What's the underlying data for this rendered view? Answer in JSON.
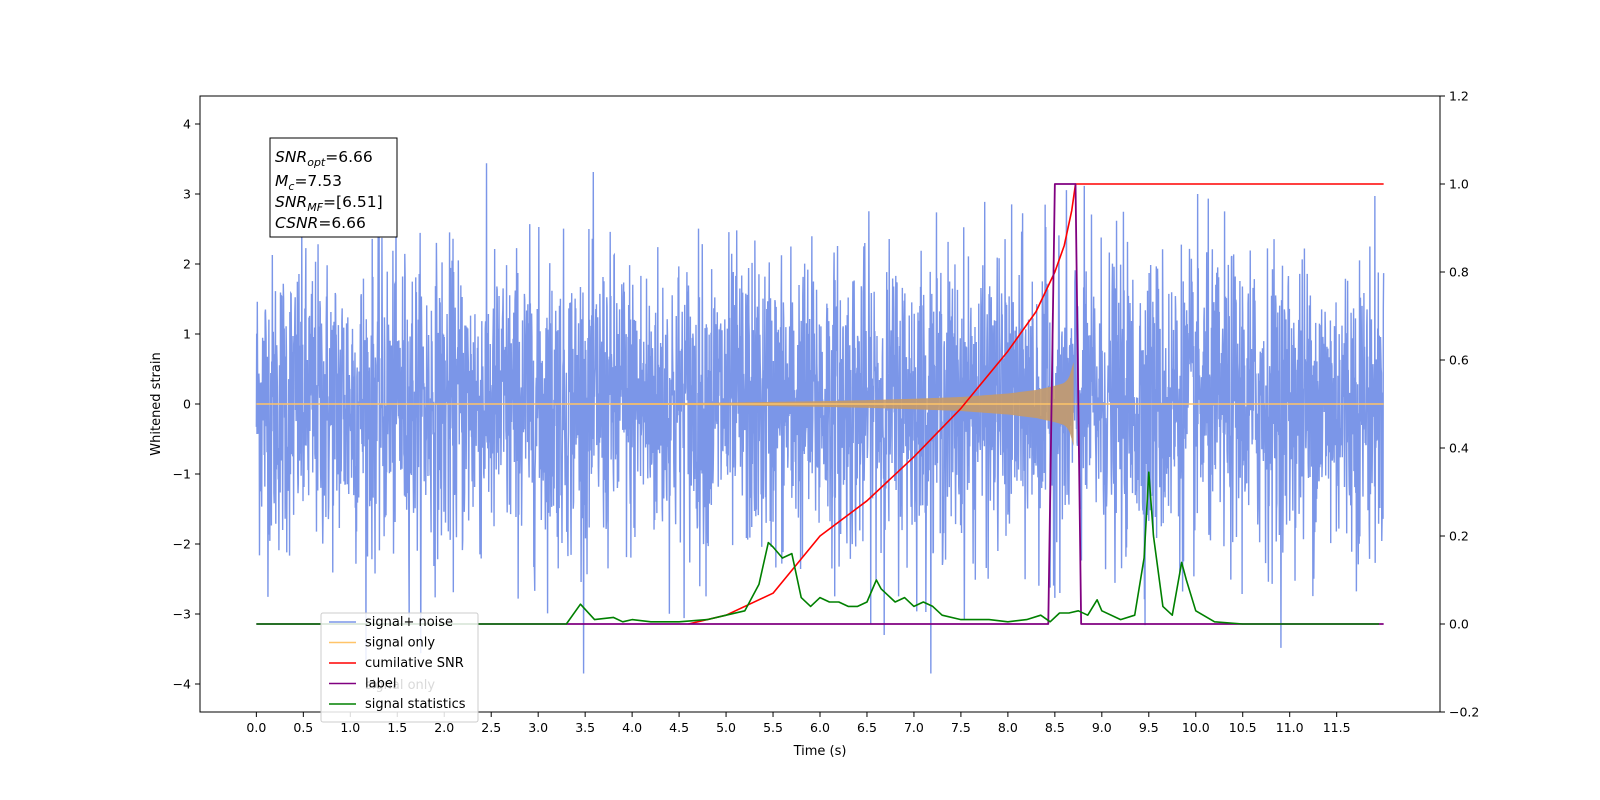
{
  "chart_data": {
    "type": "line",
    "xlabel": "Time (s)",
    "ylabel": "Whitened strain",
    "xlim": [
      -0.6,
      12.6
    ],
    "ylim": [
      -4.4,
      4.4
    ],
    "y2lim": [
      -0.2,
      1.2
    ],
    "x_ticks": [
      0.0,
      0.5,
      1.0,
      1.5,
      2.0,
      2.5,
      3.0,
      3.5,
      4.0,
      4.5,
      5.0,
      5.5,
      6.0,
      6.5,
      7.0,
      7.5,
      8.0,
      8.5,
      9.0,
      9.5,
      10.0,
      10.5,
      11.0,
      11.5
    ],
    "x_tick_labels": [
      "0.0",
      "0.5",
      "1.0",
      "1.5",
      "2.0",
      "2.5",
      "3.0",
      "3.5",
      "4.0",
      "4.5",
      "5.0",
      "5.5",
      "6.0",
      "6.5",
      "7.0",
      "7.5",
      "8.0",
      "8.5",
      "9.0",
      "9.5",
      "10.0",
      "10.5",
      "11.0",
      "11.5"
    ],
    "y_ticks": [
      4,
      3,
      2,
      1,
      0,
      -1,
      -2,
      -3,
      -4
    ],
    "y_tick_labels": [
      "4",
      "3",
      "2",
      "1",
      "0",
      "−1",
      "−2",
      "−3",
      "−4"
    ],
    "y2_ticks": [
      1.2,
      1.0,
      0.8,
      0.6,
      0.4,
      0.2,
      0.0,
      -0.2
    ],
    "y2_tick_labels": [
      "1.2",
      "1.0",
      "0.8",
      "0.6",
      "0.4",
      "0.2",
      "0.0",
      "−0.2"
    ],
    "grid": false,
    "legend_position": "lower-left",
    "legend": [
      {
        "label": "signal+ noise",
        "color": "#7b96e8"
      },
      {
        "label": "signal only",
        "color": "#ffc469"
      },
      {
        "label": "cumilative SNR",
        "color": "#ff0000"
      },
      {
        "label": "label",
        "color": "#800080"
      },
      {
        "label": "signal statistics",
        "color": "#008000"
      }
    ],
    "legend_hidden_label": "signal only",
    "stats_box": {
      "snr_opt_main": "SNR",
      "snr_opt_sub": "opt",
      "snr_opt_value": "=6.66",
      "mc_main": "M",
      "mc_sub": "c",
      "mc_value": "=7.53",
      "snr_mf_main": "SNR",
      "snr_mf_sub": "MF",
      "snr_mf_value": "=[6.51]",
      "csnr_main": "CSNR",
      "csnr_value": "=6.66"
    },
    "series": [
      {
        "name": "signal+ noise",
        "axis": "left",
        "color": "#7b96e8",
        "x_range": [
          0.0,
          12.0
        ],
        "noise_sigma": 1.0,
        "y_min": -3.85,
        "y_max": 4.12
      },
      {
        "name": "signal only",
        "axis": "left",
        "color": "#ffc469",
        "x": [
          0.0,
          3.0,
          4.0,
          5.0,
          6.0,
          6.5,
          7.0,
          7.5,
          8.0,
          8.3,
          8.5,
          8.6,
          8.65,
          8.7,
          8.72
        ],
        "envelope": [
          0.0,
          0.005,
          0.01,
          0.02,
          0.04,
          0.055,
          0.075,
          0.1,
          0.15,
          0.2,
          0.26,
          0.3,
          0.37,
          0.6,
          0.0
        ]
      },
      {
        "name": "cumilative SNR",
        "axis": "right",
        "color": "#ff0000",
        "x": [
          4.6,
          5.0,
          5.5,
          6.0,
          6.5,
          7.0,
          7.5,
          8.0,
          8.3,
          8.5,
          8.6,
          8.68,
          8.72,
          12.0
        ],
        "y": [
          0.0,
          0.02,
          0.07,
          0.2,
          0.28,
          0.38,
          0.49,
          0.62,
          0.71,
          0.8,
          0.86,
          0.94,
          1.0,
          1.0
        ]
      },
      {
        "name": "label",
        "axis": "right",
        "color": "#800080",
        "x": [
          0.0,
          8.43,
          8.5,
          8.72,
          8.78,
          12.0
        ],
        "y": [
          0.0,
          0.0,
          1.0,
          1.0,
          0.0,
          0.0
        ]
      },
      {
        "name": "signal statistics",
        "axis": "right",
        "color": "#008000",
        "x": [
          0.0,
          3.0,
          3.3,
          3.45,
          3.6,
          3.8,
          3.9,
          4.0,
          4.2,
          4.5,
          4.8,
          5.0,
          5.2,
          5.35,
          5.45,
          5.5,
          5.6,
          5.7,
          5.8,
          5.9,
          6.0,
          6.1,
          6.2,
          6.3,
          6.4,
          6.5,
          6.6,
          6.65,
          6.8,
          6.9,
          7.0,
          7.1,
          7.2,
          7.3,
          7.5,
          7.8,
          8.0,
          8.2,
          8.35,
          8.45,
          8.55,
          8.65,
          8.75,
          8.85,
          8.95,
          9.0,
          9.2,
          9.35,
          9.45,
          9.5,
          9.55,
          9.65,
          9.75,
          9.85,
          9.9,
          10.0,
          10.2,
          10.5,
          11.0,
          11.95
        ],
        "y": [
          0.0,
          0.0,
          0.0,
          0.045,
          0.01,
          0.015,
          0.005,
          0.01,
          0.005,
          0.005,
          0.01,
          0.02,
          0.03,
          0.09,
          0.185,
          0.175,
          0.15,
          0.16,
          0.06,
          0.04,
          0.06,
          0.05,
          0.05,
          0.04,
          0.04,
          0.05,
          0.1,
          0.08,
          0.05,
          0.06,
          0.04,
          0.05,
          0.04,
          0.02,
          0.01,
          0.01,
          0.005,
          0.01,
          0.02,
          0.005,
          0.025,
          0.025,
          0.03,
          0.02,
          0.055,
          0.03,
          0.01,
          0.02,
          0.15,
          0.345,
          0.2,
          0.04,
          0.02,
          0.14,
          0.1,
          0.03,
          0.005,
          0.0,
          0.0,
          0.0
        ]
      }
    ]
  }
}
